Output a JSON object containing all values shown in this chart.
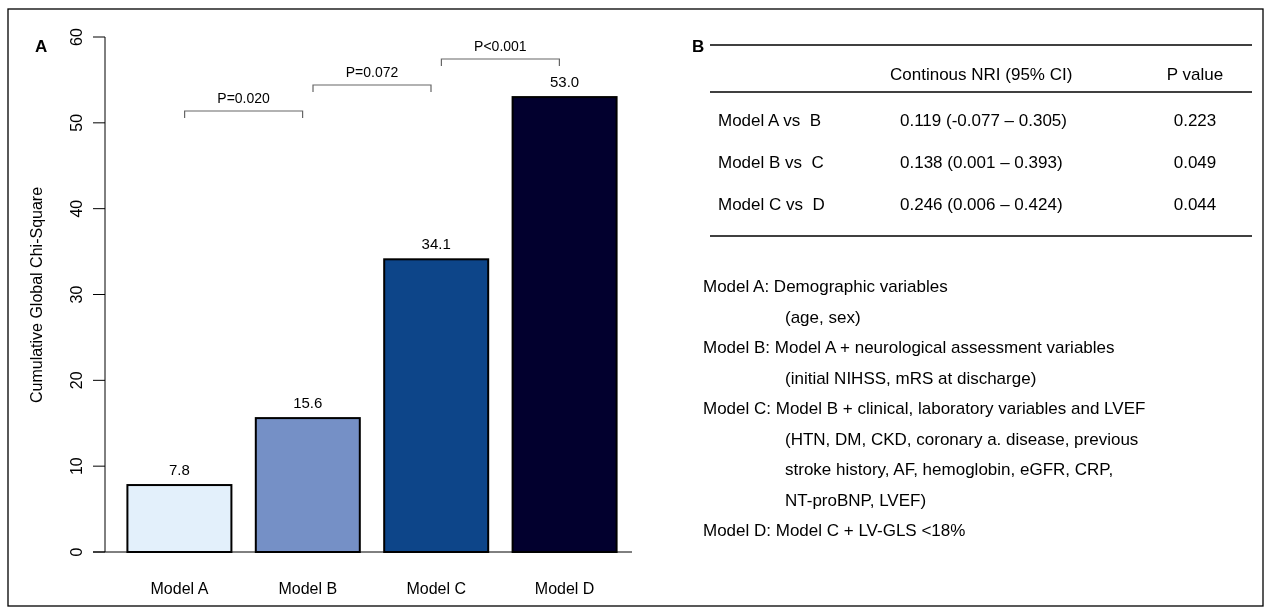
{
  "chart_data": [
    {
      "type": "bar",
      "title": "A",
      "ylabel": "Cumulative Global Chi-Square",
      "categories": [
        "Model A",
        "Model B",
        "Model C",
        "Model D"
      ],
      "values": [
        7.8,
        15.6,
        34.1,
        53.0
      ],
      "colors": [
        "#e3f0fb",
        "#7590c6",
        "#0d4589",
        "#02002e"
      ],
      "value_labels": [
        "7.8",
        "15.6",
        "34.1",
        "53.0"
      ],
      "ylim": [
        0,
        60
      ],
      "yticks": [
        0,
        10,
        20,
        30,
        40,
        50,
        60
      ],
      "annotations": [
        "P=0.020",
        "P=0.072",
        "P<0.001"
      ]
    },
    {
      "type": "other",
      "title": "B",
      "annotations": [
        "Continous NRI (95% CI)",
        "P value",
        "Model A vs  B",
        "0.119 (-0.077 – 0.305)",
        "0.223",
        "Model B vs  C",
        "0.138 (0.001 – 0.393)",
        "0.049",
        "Model C vs  D",
        "0.246 (0.006 – 0.424)",
        "0.044",
        "Model A: Demographic variables",
        "(age, sex)",
        "Model B: Model A + neurological assessment variables",
        "(initial NIHSS, mRS at discharge)",
        "Model C: Model B + clinical, laboratory variables and LVEF",
        "(HTN, DM, CKD, coronary a. disease, previous",
        "stroke history, AF, hemoglobin, eGFR, CRP,",
        "NT-proBNP, LVEF)",
        "Model D: Model C + LV-GLS <18%"
      ]
    }
  ]
}
